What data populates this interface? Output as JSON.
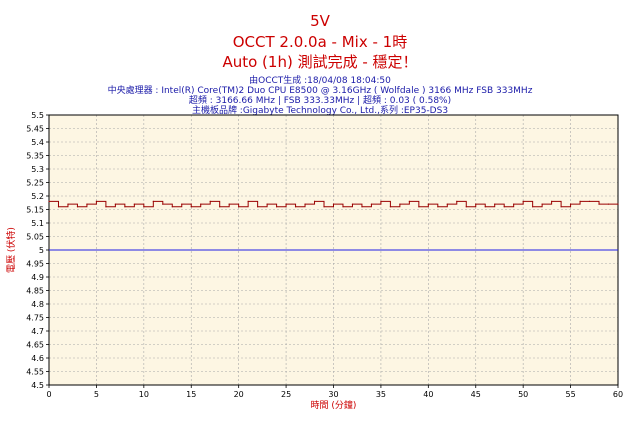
{
  "header": {
    "title": "5V",
    "subtitle": "OCCT 2.0.0a - Mix - 1時",
    "status": "Auto (1h) 測試完成 - 穩定！",
    "info_lines": [
      "由OCCT生成 :18/04/08 18:04:50",
      "中央處理器 : Intel(R) Core(TM)2 Duo CPU E8500 @ 3.16GHz ( Wolfdale ) 3166 MHz FSB 333MHz",
      "超頻 : 3166.66 MHz | FSB 333.33MHz | 超頻 : 0.03 ( 0.58%)",
      "主機板品牌 :Gigabyte Technology Co., Ltd.,系列 :EP35-DS3"
    ]
  },
  "colors": {
    "background": "#fdf6e3",
    "grid": "#a8a8a8",
    "series_line": "#990000",
    "reference_line": "#1e1ee6",
    "title": "#cc0000",
    "info": "#1a1aa8"
  },
  "chart_data": {
    "type": "line",
    "xlabel": "時間 (分鐘)",
    "ylabel": "電壓 (伏特)",
    "xlim": [
      0,
      60
    ],
    "ylim": [
      4.5,
      5.5
    ],
    "x_ticks": [
      0,
      5,
      10,
      15,
      20,
      25,
      30,
      35,
      40,
      45,
      50,
      55,
      60
    ],
    "y_ticks": [
      4.5,
      4.55,
      4.6,
      4.65,
      4.7,
      4.75,
      4.8,
      4.85,
      4.9,
      4.95,
      5,
      5.05,
      5.1,
      5.15,
      5.2,
      5.25,
      5.3,
      5.35,
      5.4,
      5.45,
      5.5
    ],
    "x_tick_labels": [
      "0",
      "5",
      "10",
      "15",
      "20",
      "25",
      "30",
      "35",
      "40",
      "45",
      "50",
      "55",
      "60"
    ],
    "y_tick_labels": [
      "4.5",
      "4.55",
      "4.6",
      "4.65",
      "4.7",
      "4.75",
      "4.8",
      "4.85",
      "4.9",
      "4.95",
      "5",
      "5.05",
      "5.1",
      "5.15",
      "5.2",
      "5.25",
      "5.3",
      "5.35",
      "5.4",
      "5.45",
      "5.5"
    ],
    "grid": true,
    "series": [
      {
        "x": [
          0,
          1,
          2,
          3,
          4,
          5,
          6,
          7,
          8,
          9,
          10,
          11,
          12,
          13,
          14,
          15,
          16,
          17,
          18,
          19,
          20,
          21,
          22,
          23,
          24,
          25,
          26,
          27,
          28,
          29,
          30,
          31,
          32,
          33,
          34,
          35,
          36,
          37,
          38,
          39,
          40,
          41,
          42,
          43,
          44,
          45,
          46,
          47,
          48,
          49,
          50,
          51,
          52,
          53,
          54,
          55,
          56,
          57,
          58,
          59,
          60
        ],
        "values": [
          5.18,
          5.16,
          5.17,
          5.16,
          5.17,
          5.18,
          5.16,
          5.17,
          5.16,
          5.17,
          5.16,
          5.18,
          5.17,
          5.16,
          5.17,
          5.16,
          5.17,
          5.18,
          5.16,
          5.17,
          5.16,
          5.18,
          5.16,
          5.17,
          5.16,
          5.17,
          5.16,
          5.17,
          5.18,
          5.16,
          5.17,
          5.16,
          5.17,
          5.16,
          5.17,
          5.18,
          5.16,
          5.17,
          5.18,
          5.16,
          5.17,
          5.16,
          5.17,
          5.18,
          5.16,
          5.17,
          5.16,
          5.17,
          5.16,
          5.17,
          5.18,
          5.16,
          5.17,
          5.18,
          5.16,
          5.17,
          5.18,
          5.18,
          5.17,
          5.17,
          5.17
        ]
      },
      {
        "x": [
          0,
          60
        ],
        "values": [
          5.0,
          5.0
        ]
      }
    ]
  }
}
